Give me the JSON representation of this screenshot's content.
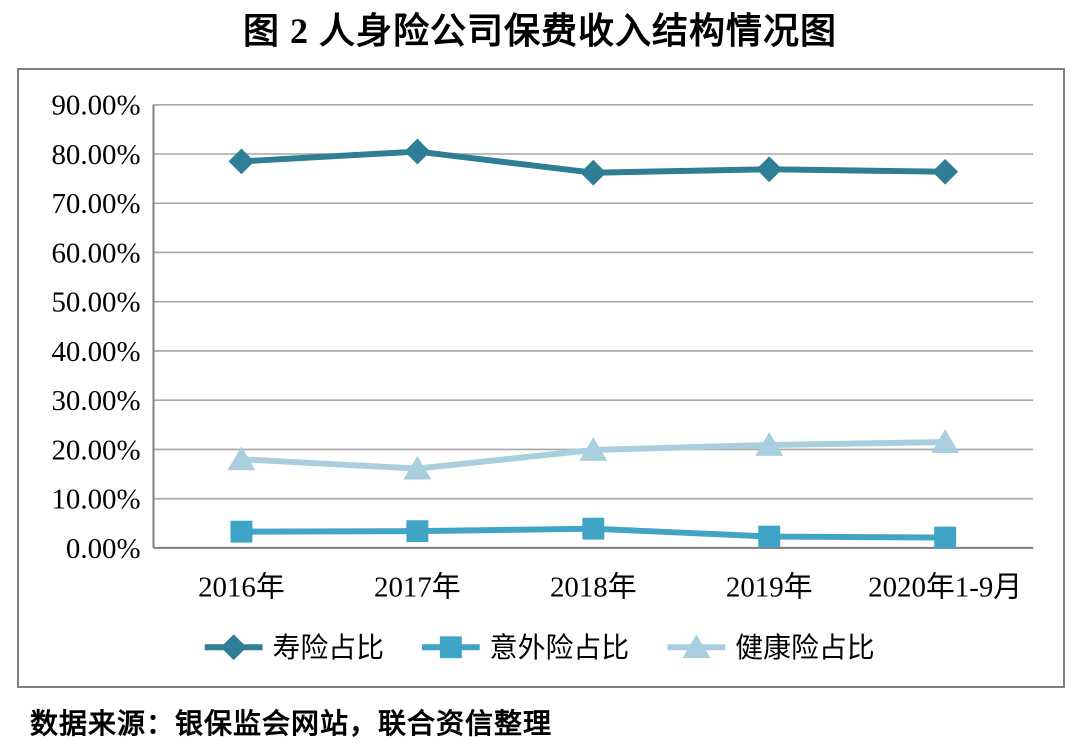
{
  "page": {
    "title": "图 2 人身险公司保费收入结构情况图",
    "source_note": "数据来源：银保监会网站，联合资信整理"
  },
  "colors": {
    "life_series": "#2e7e96",
    "accident_series": "#3fa4c5",
    "health_series": "#a9cede",
    "gridline": "#a6a6a6",
    "axis": "#808080",
    "frame_border": "#7f7f7f",
    "text": "#000000"
  },
  "chart_data": {
    "type": "line",
    "title": "图 2 人身险公司保费收入结构情况图",
    "categories": [
      "2016年",
      "2017年",
      "2018年",
      "2019年",
      "2020年1-9月"
    ],
    "series": [
      {
        "key": "life-share",
        "name": "寿险占比",
        "marker": "diamond",
        "color": "#2e7e96",
        "values": [
          78.5,
          80.5,
          76.2,
          76.9,
          76.4
        ]
      },
      {
        "key": "accident-share",
        "name": "意外险占比",
        "marker": "square",
        "color": "#3fa4c5",
        "values": [
          3.3,
          3.4,
          3.9,
          2.3,
          2.1
        ]
      },
      {
        "key": "health-share",
        "name": "健康险占比",
        "marker": "triangle",
        "color": "#a9cede",
        "values": [
          18.0,
          16.1,
          19.9,
          20.9,
          21.5
        ]
      }
    ],
    "ylim": [
      0,
      90
    ],
    "ytick_step": 10,
    "ytick_labels": [
      "0.00%",
      "10.00%",
      "20.00%",
      "30.00%",
      "40.00%",
      "50.00%",
      "60.00%",
      "70.00%",
      "80.00%",
      "90.00%"
    ],
    "grid": "horizontal",
    "legend_position": "bottom",
    "source_note": "数据来源：银保监会网站，联合资信整理"
  }
}
